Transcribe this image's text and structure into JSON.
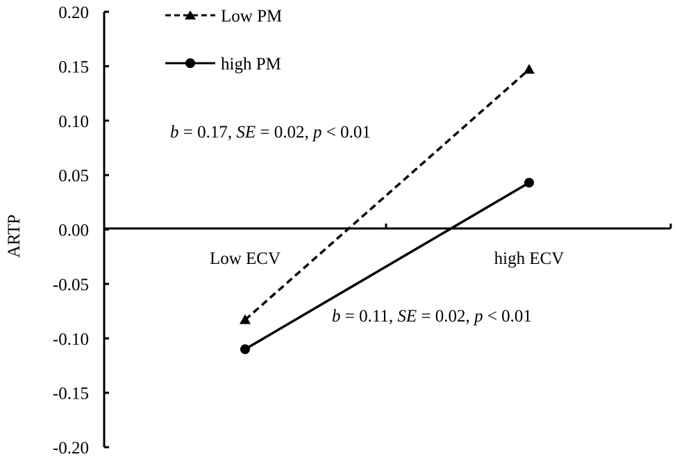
{
  "chart_data": {
    "type": "line",
    "title": "",
    "xlabel": "",
    "ylabel": "ARTP",
    "categories": [
      "Low ECV",
      "high ECV"
    ],
    "ylim": [
      -0.2,
      0.2
    ],
    "yticks": [
      "0.20",
      "0.15",
      "0.10",
      "0.05",
      "0.00",
      "-0.05",
      "-0.10",
      "-0.15",
      "-0.20"
    ],
    "grid": false,
    "legend_position": "top-left",
    "series": [
      {
        "name": "Low PM",
        "values": [
          -0.083,
          0.147
        ],
        "line_style": "dashed",
        "marker": "triangle",
        "color": "#000000"
      },
      {
        "name": "high PM",
        "values": [
          -0.11,
          0.043
        ],
        "line_style": "solid",
        "marker": "circle",
        "color": "#000000"
      }
    ],
    "annotations": [
      {
        "b": "b",
        "b_val": " = 0.17, ",
        "se": "SE",
        "se_val": " = 0.02, ",
        "p": "p",
        "p_val": " < 0.01"
      },
      {
        "b": "b",
        "b_val": " = 0.11, ",
        "se": "SE",
        "se_val": " = 0.02, ",
        "p": "p",
        "p_val": " < 0.01"
      }
    ]
  }
}
